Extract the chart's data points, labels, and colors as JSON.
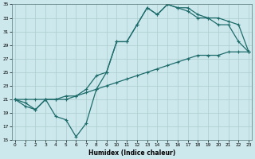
{
  "xlabel": "Humidex (Indice chaleur)",
  "bg_color": "#cce8ec",
  "grid_color": "#aacccc",
  "line_color": "#1e6b6b",
  "xlim": [
    -0.5,
    23.5
  ],
  "ylim": [
    15,
    35
  ],
  "xticks": [
    0,
    1,
    2,
    3,
    4,
    5,
    6,
    7,
    8,
    9,
    10,
    11,
    12,
    13,
    14,
    15,
    16,
    17,
    18,
    19,
    20,
    21,
    22,
    23
  ],
  "yticks": [
    15,
    17,
    19,
    21,
    23,
    25,
    27,
    29,
    31,
    33,
    35
  ],
  "curve1_x": [
    0,
    1,
    2,
    3,
    4,
    5,
    6,
    7,
    8,
    9,
    10,
    11,
    12,
    13,
    14,
    15,
    16,
    17,
    18,
    19,
    20,
    21,
    22,
    23
  ],
  "curve1_y": [
    21.0,
    20.5,
    19.5,
    21.0,
    21.0,
    21.5,
    21.5,
    22.5,
    24.5,
    25.0,
    29.5,
    29.5,
    32.0,
    34.5,
    33.5,
    35.0,
    34.5,
    34.5,
    33.5,
    33.0,
    33.0,
    32.5,
    32.0,
    28.0
  ],
  "curve2_x": [
    0,
    1,
    2,
    3,
    4,
    5,
    6,
    7,
    8,
    9,
    10,
    11,
    12,
    13,
    14,
    15,
    16,
    17,
    18,
    19,
    20,
    21,
    22,
    23
  ],
  "curve2_y": [
    21.0,
    20.0,
    19.5,
    21.0,
    18.5,
    18.0,
    15.5,
    17.5,
    22.5,
    25.0,
    29.5,
    29.5,
    32.0,
    34.5,
    33.5,
    35.0,
    34.5,
    34.0,
    33.0,
    33.0,
    32.0,
    32.0,
    29.5,
    28.0
  ],
  "curve3_x": [
    0,
    1,
    2,
    3,
    4,
    5,
    6,
    7,
    8,
    9,
    10,
    11,
    12,
    13,
    14,
    15,
    16,
    17,
    18,
    19,
    20,
    21,
    22,
    23
  ],
  "curve3_y": [
    21.0,
    21.0,
    21.0,
    21.0,
    21.0,
    21.0,
    21.5,
    22.0,
    22.5,
    23.0,
    23.5,
    24.0,
    24.5,
    25.0,
    25.5,
    26.0,
    26.5,
    27.0,
    27.5,
    27.5,
    27.5,
    28.0,
    28.0,
    28.0
  ]
}
